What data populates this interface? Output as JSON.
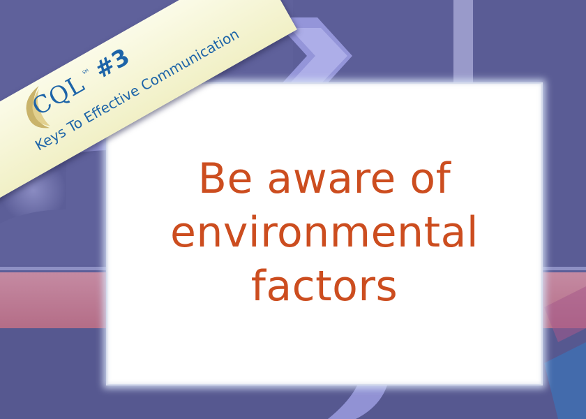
{
  "banner": {
    "logo_text": "CQL",
    "trademark": "SM",
    "number": "#3",
    "tagline": "Keys To Effective Communication",
    "logo_icon": "swoosh-logo-icon"
  },
  "card": {
    "lines": [
      "Be aware of",
      "environmental",
      "factors"
    ]
  },
  "colors": {
    "background": "#5a5c96",
    "message_text": "#cc4d1f",
    "banner_text": "#1d64a8",
    "banner_fill": "#f6f5d6",
    "accent_band": "#c47a92"
  }
}
